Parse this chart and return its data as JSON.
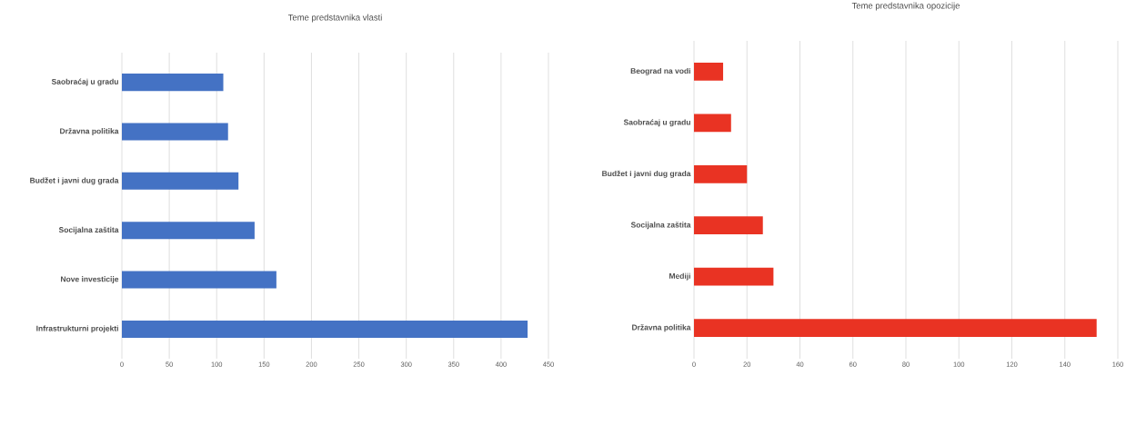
{
  "chart_data": [
    {
      "type": "bar",
      "orientation": "horizontal",
      "title": "Teme predstavnika vlasti",
      "categories": [
        "Saobraćaj u gradu",
        "Državna politika",
        "Budžet i javni dug grada",
        "Socijalna zaštita",
        "Nove investicije",
        "Infrastrukturni projekti"
      ],
      "values": [
        107,
        112,
        123,
        140,
        163,
        428
      ],
      "color": "#4472c4",
      "xlim": [
        0,
        450
      ],
      "xticks": [
        0,
        50,
        100,
        150,
        200,
        250,
        300,
        350,
        400,
        450
      ],
      "grid": "x"
    },
    {
      "type": "bar",
      "orientation": "horizontal",
      "title": "Teme predstavnika opozicije",
      "categories": [
        "Beograd na vodi",
        "Saobraćaj u gradu",
        "Budžet i javni dug grada",
        "Socijalna zaštita",
        "Mediji",
        "Državna politika"
      ],
      "values": [
        11,
        14,
        20,
        26,
        30,
        152
      ],
      "color": "#e93323",
      "xlim": [
        0,
        160
      ],
      "xticks": [
        0,
        20,
        40,
        60,
        80,
        100,
        120,
        140,
        160
      ],
      "grid": "x"
    }
  ]
}
